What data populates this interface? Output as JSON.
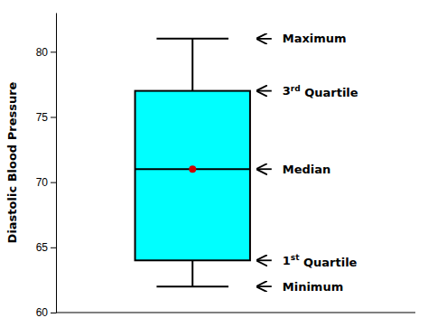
{
  "chart_data": {
    "type": "box",
    "ylabel": "Diastolic Blood Pressure",
    "box": {
      "min": 62,
      "q1": 64,
      "median": 71,
      "q3": 77,
      "max": 81,
      "mean": 71
    },
    "colors": [
      "#00FFFF",
      "#CC0000"
    ],
    "ylim": [
      60,
      83
    ],
    "yticks": [
      60,
      65,
      70,
      75,
      80
    ],
    "annotations": [
      {
        "label": "Maximum",
        "y": 81
      },
      {
        "label": "3",
        "superscript": "rd",
        "suffix": " Quartile",
        "y": 77
      },
      {
        "label": "Median",
        "y": 71
      },
      {
        "label": "1",
        "superscript": "st",
        "suffix": " Quartile",
        "y": 64
      },
      {
        "label": "Minimum",
        "y": 62
      }
    ]
  }
}
